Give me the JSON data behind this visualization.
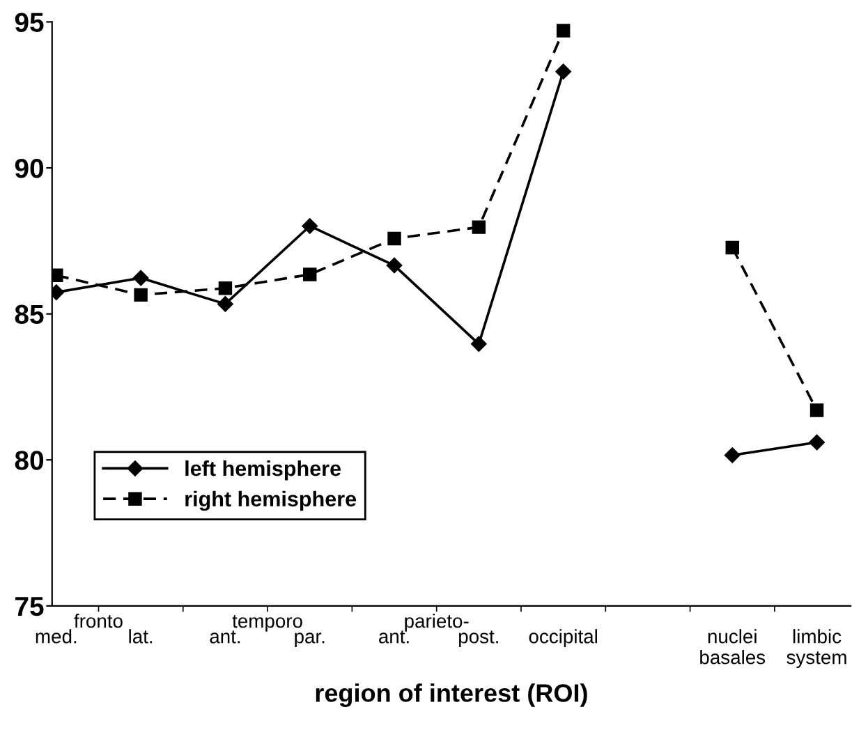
{
  "chart_data": {
    "type": "line",
    "xlabel": "region of interest (ROI)",
    "categories": [
      "med.",
      "lat.",
      "ant.",
      "par.",
      "ant.",
      "post.",
      "occipital",
      null,
      "nuclei\nbasales",
      "limbic\nsystem"
    ],
    "series": [
      {
        "name": "left hemisphere",
        "color": "#000000",
        "marker": "diamond",
        "line_style": "solid",
        "values": [
          85.74,
          86.23,
          85.34,
          88.01,
          86.66,
          83.97,
          93.3,
          null,
          80.16,
          80.6
        ]
      },
      {
        "name": "right hemisphere",
        "color": "#000000",
        "marker": "square",
        "line_style": "dashed",
        "values": [
          86.32,
          85.65,
          85.88,
          86.35,
          87.58,
          87.97,
          94.7,
          null,
          87.27,
          81.7
        ]
      }
    ],
    "annotations": [
      "fronto",
      "temporo",
      "parieto-"
    ],
    "ylim": [
      75,
      95
    ],
    "yticks": [
      75,
      80,
      85,
      90,
      95
    ],
    "grid": false,
    "legend": "bottom left"
  }
}
